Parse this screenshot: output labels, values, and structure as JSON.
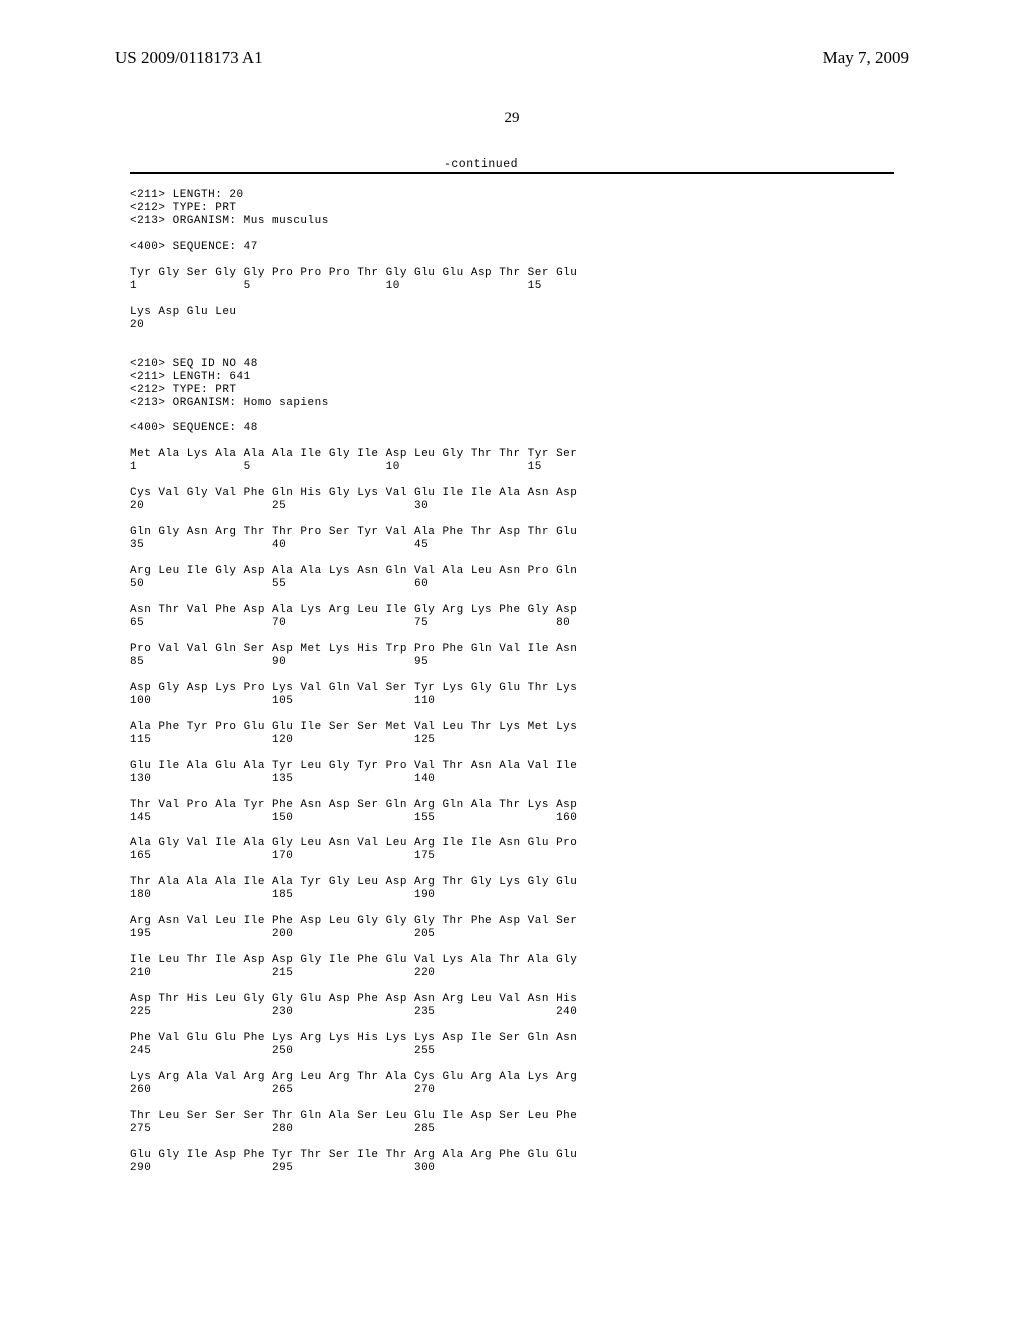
{
  "header": {
    "publication": "US 2009/0118173 A1",
    "date": "May 7, 2009"
  },
  "page_number": "29",
  "continued": "-continued",
  "rule_color": "#000000",
  "seq47": {
    "meta": [
      "<211> LENGTH: 20",
      "<212> TYPE: PRT",
      "<213> ORGANISM: Mus musculus"
    ],
    "sequence_tag": "<400> SEQUENCE: 47",
    "lines": [
      {
        "aa": "Tyr Gly Ser Gly Gly Pro Pro Pro Thr Gly Glu Glu Asp Thr Ser Glu",
        "nums": "1               5                   10                  15"
      },
      {
        "aa": "Lys Asp Glu Leu",
        "nums": "20"
      }
    ]
  },
  "seq48": {
    "meta": [
      "<210> SEQ ID NO 48",
      "<211> LENGTH: 641",
      "<212> TYPE: PRT",
      "<213> ORGANISM: Homo sapiens"
    ],
    "sequence_tag": "<400> SEQUENCE: 48",
    "lines": [
      {
        "aa": "Met Ala Lys Ala Ala Ala Ile Gly Ile Asp Leu Gly Thr Thr Tyr Ser",
        "nums": "1               5                   10                  15"
      },
      {
        "aa": "Cys Val Gly Val Phe Gln His Gly Lys Val Glu Ile Ile Ala Asn Asp",
        "nums": "20                  25                  30"
      },
      {
        "aa": "Gln Gly Asn Arg Thr Thr Pro Ser Tyr Val Ala Phe Thr Asp Thr Glu",
        "nums": "35                  40                  45"
      },
      {
        "aa": "Arg Leu Ile Gly Asp Ala Ala Lys Asn Gln Val Ala Leu Asn Pro Gln",
        "nums": "50                  55                  60"
      },
      {
        "aa": "Asn Thr Val Phe Asp Ala Lys Arg Leu Ile Gly Arg Lys Phe Gly Asp",
        "nums": "65                  70                  75                  80"
      },
      {
        "aa": "Pro Val Val Gln Ser Asp Met Lys His Trp Pro Phe Gln Val Ile Asn",
        "nums": "85                  90                  95"
      },
      {
        "aa": "Asp Gly Asp Lys Pro Lys Val Gln Val Ser Tyr Lys Gly Glu Thr Lys",
        "nums": "100                 105                 110"
      },
      {
        "aa": "Ala Phe Tyr Pro Glu Glu Ile Ser Ser Met Val Leu Thr Lys Met Lys",
        "nums": "115                 120                 125"
      },
      {
        "aa": "Glu Ile Ala Glu Ala Tyr Leu Gly Tyr Pro Val Thr Asn Ala Val Ile",
        "nums": "130                 135                 140"
      },
      {
        "aa": "Thr Val Pro Ala Tyr Phe Asn Asp Ser Gln Arg Gln Ala Thr Lys Asp",
        "nums": "145                 150                 155                 160"
      },
      {
        "aa": "Ala Gly Val Ile Ala Gly Leu Asn Val Leu Arg Ile Ile Asn Glu Pro",
        "nums": "165                 170                 175"
      },
      {
        "aa": "Thr Ala Ala Ala Ile Ala Tyr Gly Leu Asp Arg Thr Gly Lys Gly Glu",
        "nums": "180                 185                 190"
      },
      {
        "aa": "Arg Asn Val Leu Ile Phe Asp Leu Gly Gly Gly Thr Phe Asp Val Ser",
        "nums": "195                 200                 205"
      },
      {
        "aa": "Ile Leu Thr Ile Asp Asp Gly Ile Phe Glu Val Lys Ala Thr Ala Gly",
        "nums": "210                 215                 220"
      },
      {
        "aa": "Asp Thr His Leu Gly Gly Glu Asp Phe Asp Asn Arg Leu Val Asn His",
        "nums": "225                 230                 235                 240"
      },
      {
        "aa": "Phe Val Glu Glu Phe Lys Arg Lys His Lys Lys Asp Ile Ser Gln Asn",
        "nums": "245                 250                 255"
      },
      {
        "aa": "Lys Arg Ala Val Arg Arg Leu Arg Thr Ala Cys Glu Arg Ala Lys Arg",
        "nums": "260                 265                 270"
      },
      {
        "aa": "Thr Leu Ser Ser Ser Thr Gln Ala Ser Leu Glu Ile Asp Ser Leu Phe",
        "nums": "275                 280                 285"
      },
      {
        "aa": "Glu Gly Ile Asp Phe Tyr Thr Ser Ile Thr Arg Ala Arg Phe Glu Glu",
        "nums": "290                 295                 300"
      }
    ]
  }
}
